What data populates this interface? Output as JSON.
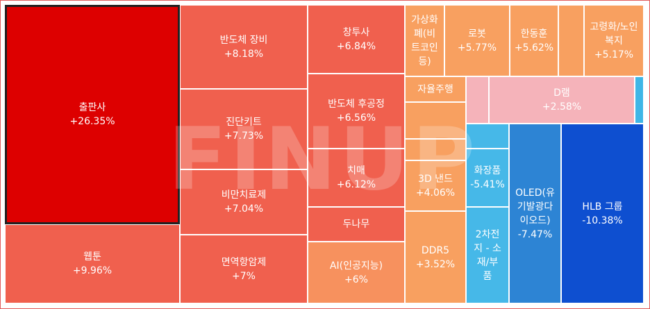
{
  "watermark": "FINUP",
  "chart_data": {
    "type": "treemap",
    "tiles": [
      {
        "name": "출판사",
        "label": "출판사",
        "value_label": "+26.35%",
        "value": 26.35,
        "color": "#dd0000",
        "selected": true
      },
      {
        "name": "웹툰",
        "label": "웹툰",
        "value_label": "+9.96%",
        "value": 9.96,
        "color": "#f0604e"
      },
      {
        "name": "반도체 장비",
        "label": "반도체 장비",
        "value_label": "+8.18%",
        "value": 8.18,
        "color": "#f0604e"
      },
      {
        "name": "진단키트",
        "label": "진단키트",
        "value_label": "+7.73%",
        "value": 7.73,
        "color": "#f0604e"
      },
      {
        "name": "비만치료제",
        "label": "비만치료제",
        "value_label": "+7.04%",
        "value": 7.04,
        "color": "#f0604e"
      },
      {
        "name": "면역항암제",
        "label": "면역항암제",
        "value_label": "+7%",
        "value": 7.0,
        "color": "#f0604e"
      },
      {
        "name": "창투사",
        "label": "창투사",
        "value_label": "+6.84%",
        "value": 6.84,
        "color": "#f0604e"
      },
      {
        "name": "반도체 후공정",
        "label": "반도체 후공정",
        "value_label": "+6.56%",
        "value": 6.56,
        "color": "#f0604e"
      },
      {
        "name": "치매",
        "label": "치매",
        "value_label": "+6.12%",
        "value": 6.12,
        "color": "#f0604e"
      },
      {
        "name": "두나무",
        "label": "두나무",
        "value_label": "",
        "value": null,
        "color": "#f0604e"
      },
      {
        "name": "AI(인공지능)",
        "label": "AI(인공지능)",
        "value_label": "+6%",
        "value": 6.0,
        "color": "#f7915e"
      },
      {
        "name": "가상화폐(비트코인등)",
        "label": "가상화\n폐(비\n트코인\n등)",
        "value_label": "",
        "value": null,
        "color": "#f8a060"
      },
      {
        "name": "로봇",
        "label": "로봇",
        "value_label": "+5.77%",
        "value": 5.77,
        "color": "#f8a060"
      },
      {
        "name": "한동훈",
        "label": "한동훈",
        "value_label": "+5.62%",
        "value": 5.62,
        "color": "#f8a060"
      },
      {
        "name": "",
        "label": "",
        "value_label": "",
        "value": null,
        "color": "#f8a060"
      },
      {
        "name": "고령화/노인복지",
        "label": "고령화/노인\n복지",
        "value_label": "+5.17%",
        "value": 5.17,
        "color": "#f8a060"
      },
      {
        "name": "자율주행",
        "label": "자율주행",
        "value_label": "",
        "value": null,
        "color": "#f8a060"
      },
      {
        "name": "",
        "label": "",
        "value_label": "",
        "value": null,
        "color": "#f8a060"
      },
      {
        "name": "",
        "label": "",
        "value_label": "",
        "value": null,
        "color": "#f8a060"
      },
      {
        "name": "3D 낸드",
        "label": "3D 낸드",
        "value_label": "+4.06%",
        "value": 4.06,
        "color": "#f8a060"
      },
      {
        "name": "DDR5",
        "label": "DDR5",
        "value_label": "+3.52%",
        "value": 3.52,
        "color": "#f8a060"
      },
      {
        "name": "",
        "label": "",
        "value_label": "",
        "value": null,
        "color": "#f5b3ba"
      },
      {
        "name": "D램",
        "label": "D램",
        "value_label": "+2.58%",
        "value": 2.58,
        "color": "#f5b3ba"
      },
      {
        "name": "",
        "label": "",
        "value_label": "",
        "value": null,
        "color": "#3fb6e6"
      },
      {
        "name": "",
        "label": "",
        "value_label": "",
        "value": null,
        "color": "#46b8e8"
      },
      {
        "name": "화장품",
        "label": "화장품",
        "value_label": "-5.41%",
        "value": -5.41,
        "color": "#46b8e8"
      },
      {
        "name": "2차전지 - 소재/부품",
        "label": "2차전\n지 - 소\n재/부\n품",
        "value_label": "",
        "value": null,
        "color": "#46b8e8"
      },
      {
        "name": "OLED(유기발광다이오드)",
        "label": "OLED(유\n기발광다\n이오드)",
        "value_label": "-7.47%",
        "value": -7.47,
        "color": "#2d84d4"
      },
      {
        "name": "HLB 그룹",
        "label": "HLB 그룹",
        "value_label": "-10.38%",
        "value": -10.38,
        "color": "#0e4fd0"
      }
    ]
  }
}
